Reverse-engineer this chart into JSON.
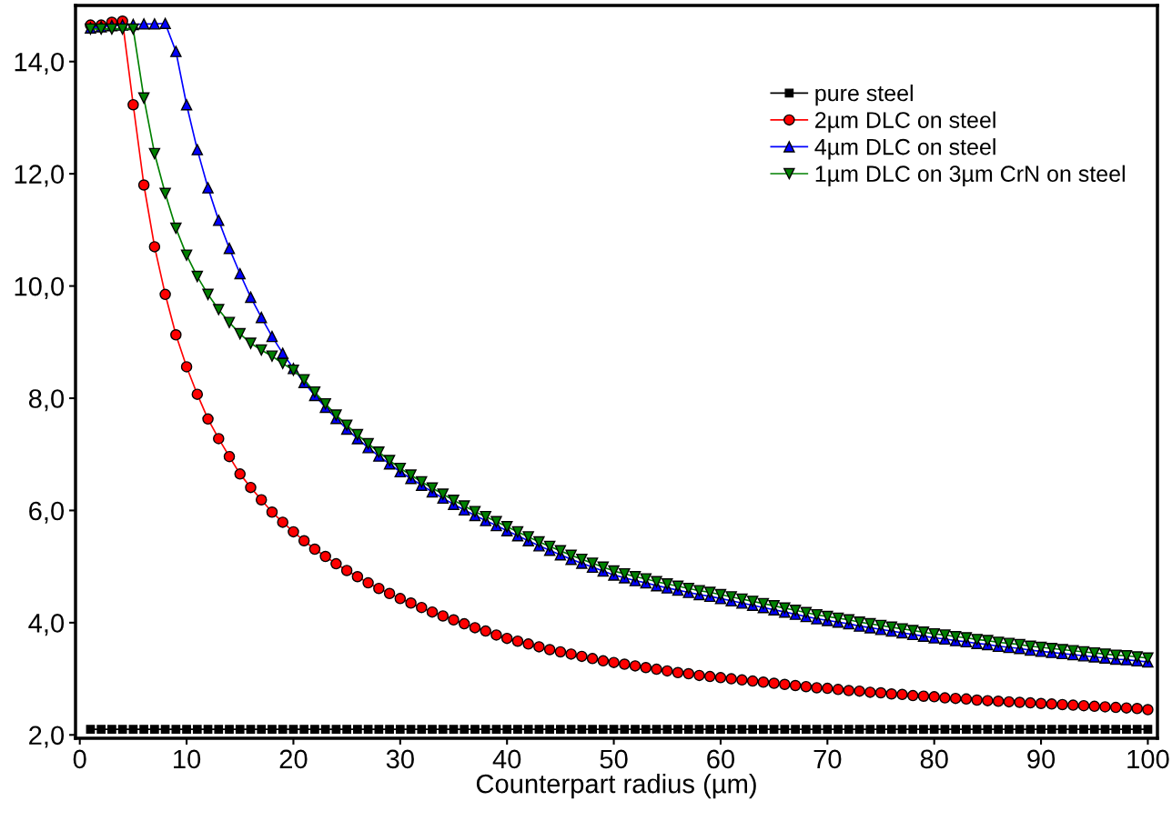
{
  "chart_data": {
    "type": "line",
    "xlabel": "Counterpart radius (µm)",
    "x": [
      1,
      2,
      3,
      4,
      5,
      6,
      7,
      8,
      9,
      10,
      11,
      12,
      13,
      14,
      15,
      16,
      17,
      18,
      19,
      20,
      21,
      22,
      23,
      24,
      25,
      26,
      27,
      28,
      29,
      30,
      31,
      32,
      33,
      34,
      35,
      36,
      37,
      38,
      39,
      40,
      41,
      42,
      43,
      44,
      45,
      46,
      47,
      48,
      49,
      50,
      51,
      52,
      53,
      54,
      55,
      56,
      57,
      58,
      59,
      60,
      61,
      62,
      63,
      64,
      65,
      66,
      67,
      68,
      69,
      70,
      71,
      72,
      73,
      74,
      75,
      76,
      77,
      78,
      79,
      80,
      81,
      82,
      83,
      84,
      85,
      86,
      87,
      88,
      89,
      90,
      91,
      92,
      93,
      94,
      95,
      96,
      97,
      98,
      99,
      100
    ],
    "series": [
      {
        "name": "pure steel",
        "color": "#000000",
        "marker": "square",
        "values": [
          2.1,
          2.1,
          2.1,
          2.1,
          2.1,
          2.1,
          2.1,
          2.1,
          2.1,
          2.1,
          2.1,
          2.1,
          2.1,
          2.1,
          2.1,
          2.1,
          2.1,
          2.1,
          2.1,
          2.1,
          2.1,
          2.1,
          2.1,
          2.1,
          2.1,
          2.1,
          2.1,
          2.1,
          2.1,
          2.1,
          2.1,
          2.1,
          2.1,
          2.1,
          2.1,
          2.1,
          2.1,
          2.1,
          2.1,
          2.1,
          2.1,
          2.1,
          2.1,
          2.1,
          2.1,
          2.1,
          2.1,
          2.1,
          2.1,
          2.1,
          2.1,
          2.1,
          2.1,
          2.1,
          2.1,
          2.1,
          2.1,
          2.1,
          2.1,
          2.1,
          2.1,
          2.1,
          2.1,
          2.1,
          2.1,
          2.1,
          2.1,
          2.1,
          2.1,
          2.1,
          2.1,
          2.1,
          2.1,
          2.1,
          2.1,
          2.1,
          2.1,
          2.1,
          2.1,
          2.1,
          2.1,
          2.1,
          2.1,
          2.1,
          2.1,
          2.1,
          2.1,
          2.1,
          2.1,
          2.1,
          2.1,
          2.1,
          2.1,
          2.1,
          2.1,
          2.1,
          2.1,
          2.1,
          2.1,
          2.1
        ]
      },
      {
        "name": "2µm DLC on steel",
        "color": "#ff0000",
        "marker": "circle",
        "values": [
          14.65,
          14.65,
          14.7,
          14.72,
          13.23,
          11.8,
          10.7,
          9.85,
          9.13,
          8.56,
          8.07,
          7.63,
          7.28,
          6.96,
          6.65,
          6.41,
          6.19,
          5.97,
          5.79,
          5.62,
          5.46,
          5.31,
          5.18,
          5.05,
          4.93,
          4.82,
          4.71,
          4.61,
          4.52,
          4.43,
          4.35,
          4.27,
          4.19,
          4.12,
          4.05,
          3.98,
          3.91,
          3.85,
          3.78,
          3.72,
          3.67,
          3.62,
          3.57,
          3.52,
          3.48,
          3.44,
          3.4,
          3.36,
          3.32,
          3.29,
          3.26,
          3.23,
          3.2,
          3.17,
          3.14,
          3.11,
          3.09,
          3.06,
          3.04,
          3.02,
          3.0,
          2.98,
          2.96,
          2.94,
          2.92,
          2.9,
          2.88,
          2.86,
          2.84,
          2.83,
          2.81,
          2.79,
          2.78,
          2.76,
          2.75,
          2.73,
          2.72,
          2.7,
          2.69,
          2.68,
          2.66,
          2.65,
          2.64,
          2.62,
          2.61,
          2.6,
          2.59,
          2.58,
          2.57,
          2.56,
          2.55,
          2.54,
          2.53,
          2.52,
          2.51,
          2.5,
          2.49,
          2.48,
          2.47,
          2.45
        ]
      },
      {
        "name": "4µm DLC on steel",
        "color": "#0000ff",
        "marker": "triangle",
        "values": [
          14.6,
          14.62,
          14.64,
          14.65,
          14.66,
          14.67,
          14.67,
          14.68,
          14.18,
          13.23,
          12.43,
          11.75,
          11.17,
          10.67,
          10.22,
          9.8,
          9.44,
          9.1,
          8.8,
          8.53,
          8.28,
          8.05,
          7.84,
          7.64,
          7.45,
          7.28,
          7.12,
          6.97,
          6.83,
          6.69,
          6.57,
          6.45,
          6.33,
          6.22,
          6.11,
          6.01,
          5.91,
          5.82,
          5.73,
          5.64,
          5.55,
          5.46,
          5.37,
          5.29,
          5.21,
          5.13,
          5.06,
          4.99,
          4.92,
          4.85,
          4.8,
          4.75,
          4.71,
          4.66,
          4.62,
          4.58,
          4.54,
          4.5,
          4.47,
          4.43,
          4.39,
          4.35,
          4.31,
          4.27,
          4.23,
          4.19,
          4.15,
          4.11,
          4.07,
          4.04,
          4.01,
          3.98,
          3.94,
          3.91,
          3.88,
          3.85,
          3.82,
          3.79,
          3.76,
          3.73,
          3.71,
          3.68,
          3.66,
          3.63,
          3.61,
          3.58,
          3.56,
          3.54,
          3.51,
          3.49,
          3.47,
          3.45,
          3.43,
          3.41,
          3.39,
          3.37,
          3.35,
          3.34,
          3.32,
          3.3
        ]
      },
      {
        "name": "1µm DLC on 3µm CrN on steel",
        "color": "#008000",
        "marker": "triangle_down",
        "values": [
          14.58,
          14.58,
          14.58,
          14.58,
          14.58,
          13.35,
          12.36,
          11.65,
          11.03,
          10.55,
          10.17,
          9.85,
          9.58,
          9.35,
          9.15,
          8.98,
          8.86,
          8.75,
          8.62,
          8.5,
          8.33,
          8.11,
          7.9,
          7.7,
          7.52,
          7.35,
          7.19,
          7.04,
          6.89,
          6.75,
          6.63,
          6.51,
          6.4,
          6.29,
          6.18,
          6.08,
          5.98,
          5.89,
          5.8,
          5.71,
          5.62,
          5.53,
          5.44,
          5.36,
          5.28,
          5.2,
          5.13,
          5.06,
          4.99,
          4.92,
          4.87,
          4.82,
          4.78,
          4.73,
          4.69,
          4.65,
          4.61,
          4.57,
          4.54,
          4.5,
          4.46,
          4.42,
          4.38,
          4.34,
          4.3,
          4.26,
          4.22,
          4.18,
          4.14,
          4.11,
          4.08,
          4.05,
          4.01,
          3.98,
          3.95,
          3.92,
          3.89,
          3.86,
          3.83,
          3.8,
          3.78,
          3.75,
          3.73,
          3.7,
          3.68,
          3.65,
          3.63,
          3.61,
          3.58,
          3.56,
          3.54,
          3.52,
          3.5,
          3.48,
          3.46,
          3.44,
          3.42,
          3.41,
          3.39,
          3.37
        ]
      }
    ],
    "xlim": [
      -0.4,
      100.9
    ],
    "xticks": [
      0,
      10,
      20,
      30,
      40,
      50,
      60,
      70,
      80,
      90,
      100
    ],
    "ylim": [
      1.94,
      15.0
    ],
    "yticks": [
      {
        "value": 2,
        "label": "2,0"
      },
      {
        "value": 4,
        "label": "4,0"
      },
      {
        "value": 6,
        "label": "6,0"
      },
      {
        "value": 8,
        "label": "8,0"
      },
      {
        "value": 10,
        "label": "10,0"
      },
      {
        "value": 12,
        "label": "12,0"
      },
      {
        "value": 14,
        "label": "14,0"
      }
    ],
    "grid": false,
    "legend": "top right",
    "line_style": "solid"
  }
}
